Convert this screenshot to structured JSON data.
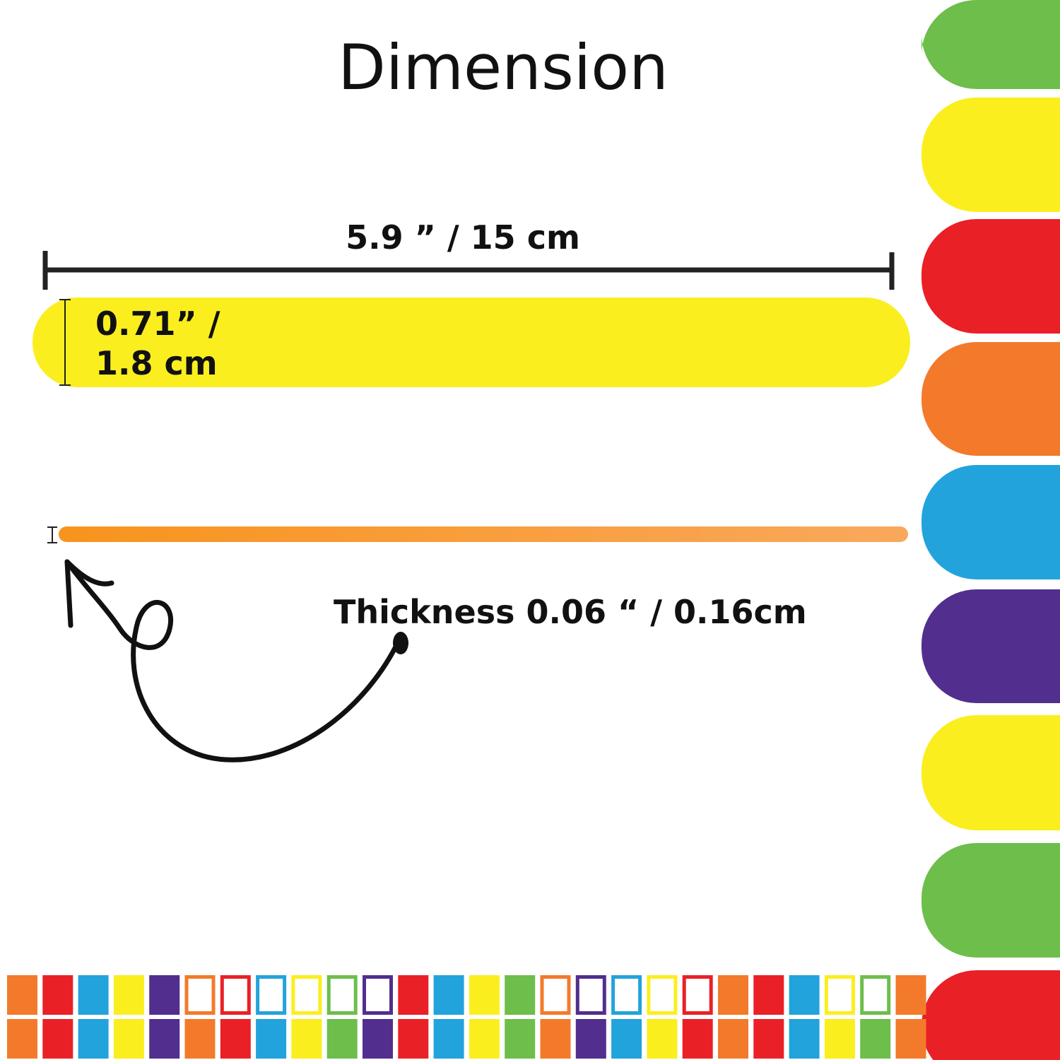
{
  "header": {
    "title": "Dimension"
  },
  "dimensions": {
    "length": "5.9 ”  /  15 cm",
    "width": [
      "0.71” /",
      "1.8 cm"
    ],
    "thickness": "Thickness 0.06 “ / 0.16cm"
  }
}
